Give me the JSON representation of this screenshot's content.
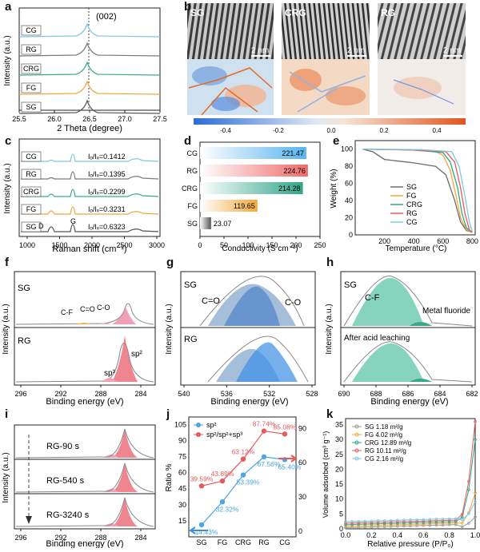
{
  "panels": {
    "a": {
      "label": "a",
      "ylabel": "Intensity (a.u.)",
      "xlabel": "2 Theta (degree)",
      "peak_label": "(002)",
      "xticks": [
        "25.5",
        "26.0",
        "26.5",
        "27.0",
        "27.5"
      ],
      "series": [
        "CG",
        "RG",
        "CRG",
        "FG",
        "SG"
      ],
      "colors": [
        "#7ec8e3",
        "#7a7a7a",
        "#3aaa8f",
        "#f0a640",
        "#555555"
      ]
    },
    "b": {
      "label": "b",
      "images": [
        "SG",
        "CRG",
        "RG"
      ],
      "scalebar": "2 nm",
      "colorbar_ticks": [
        "-0.4",
        "-0.2",
        "0.0",
        "0.2",
        "0.4"
      ]
    },
    "c": {
      "label": "c",
      "ylabel": "Intensity (a.u.)",
      "xlabel": "Raman shift (cm⁻¹)",
      "xticks": [
        "1000",
        "1500",
        "2000",
        "2500",
        "3000"
      ],
      "rows": [
        {
          "name": "CG",
          "ratio": "Iₒ/Iₓ=0.1412"
        },
        {
          "name": "RG",
          "ratio": "Iₒ/Iₓ=0.1395"
        },
        {
          "name": "CRG",
          "ratio": "Iₒ/Iₓ=0.2299"
        },
        {
          "name": "FG",
          "ratio": "Iₒ/Iₓ=0.3231"
        },
        {
          "name": "SG",
          "ratio": "Iₒ/Iₓ=0.6323"
        }
      ],
      "d_label": "D",
      "g_label": "G"
    },
    "d": {
      "label": "d",
      "xlabel": "Conductivity (S cm⁻¹)",
      "xticks": [
        "0",
        "50",
        "100",
        "150",
        "200",
        "250"
      ]
    },
    "e": {
      "label": "e",
      "ylabel": "Weight (%)",
      "xlabel": "Temperature (°C)",
      "xticks": [
        "200",
        "400",
        "600",
        "800"
      ],
      "yticks": [
        "0",
        "20",
        "40",
        "60",
        "80",
        "100"
      ],
      "legend": [
        "SG",
        "FG",
        "CRG",
        "RG",
        "CG"
      ]
    },
    "f": {
      "label": "f",
      "top": "SG",
      "bottom": "RG",
      "peaks_top": [
        "C-F",
        "C=O",
        "C-O"
      ],
      "sp2": "sp²",
      "sp3": "sp³",
      "ylabel": "Intensity (a.u.)",
      "xlabel": "Binding energy (eV)",
      "xticks": [
        "296",
        "292",
        "288",
        "284"
      ]
    },
    "g": {
      "label": "g",
      "top": "SG",
      "bottom": "RG",
      "c_o_double": "C=O",
      "c_o": "C-O",
      "ylabel": "Intensity (a.u.)",
      "xlabel": "Binding energy (eV)",
      "xticks": [
        "540",
        "536",
        "532",
        "528"
      ]
    },
    "h": {
      "label": "h",
      "top": "SG",
      "cf": "C-F",
      "metal": "Metal fluoride",
      "bottom": "After acid leaching",
      "ylabel": "Intensity (a.u.)",
      "xlabel": "Binding energy (eV)",
      "xticks": [
        "690",
        "688",
        "686",
        "684",
        "682"
      ]
    },
    "i": {
      "label": "i",
      "rows": [
        "RG-90 s",
        "RG-540 s",
        "RG-3240 s"
      ],
      "ylabel": "Intensity (a.u.)",
      "xlabel": "Binding energy (eV)",
      "xticks": [
        "296",
        "292",
        "288",
        "284"
      ]
    },
    "j": {
      "label": "j",
      "ylabel": "Ratio %",
      "legend1": "sp²",
      "legend2": "sp²/sp²+sp³",
      "yticks_left": [
        "15",
        "30",
        "45",
        "60",
        "75",
        "90",
        "105"
      ],
      "yticks_right": [
        "0",
        "30",
        "60",
        "90"
      ]
    },
    "k": {
      "label": "k",
      "ylabel": "Volume adsorbed (cm³ g⁻¹)",
      "xlabel": "Relative pressure (P/P₀)",
      "xticks": [
        "0.0",
        "0.2",
        "0.4",
        "0.6",
        "0.8",
        "1.0"
      ],
      "yticks": [
        "0",
        "5",
        "10",
        "15",
        "20",
        "25",
        "30",
        "35"
      ],
      "legend": [
        "SG 1.18 m²/g",
        "FG 4.02 m²/g",
        "CRG 12.89 m²/g",
        "RG 10.11 m²/g",
        "CG 2.16 m²/g"
      ]
    }
  },
  "chart_data": [
    {
      "type": "bar",
      "panel": "d",
      "categories": [
        "CG",
        "RG",
        "CRG",
        "FG",
        "SG"
      ],
      "values": [
        221.47,
        224.76,
        214.28,
        119.65,
        23.07
      ],
      "xlabel": "Conductivity (S cm⁻¹)",
      "xlim": [
        0,
        250
      ]
    },
    {
      "type": "line",
      "panel": "j",
      "categories": [
        "SG",
        "FG",
        "CRG",
        "RG",
        "CG"
      ],
      "series": [
        {
          "name": "sp²",
          "values": [
            14.43,
            32.32,
            53.39,
            67.56,
            65.4
          ],
          "labels": [
            "14.43%",
            "32.32%",
            "53.39%",
            "67.56%",
            "65.40%"
          ]
        },
        {
          "name": "sp²/sp²+sp³",
          "values": [
            39.59,
            43.89,
            63.12,
            87.74,
            85.08
          ],
          "labels": [
            "39.59%",
            "43.89%",
            "63.12%",
            "87.74%",
            "85.08%"
          ]
        }
      ]
    },
    {
      "type": "line",
      "panel": "e",
      "series": [
        {
          "name": "SG",
          "x": [
            50,
            120,
            200,
            400,
            550,
            620,
            680,
            720,
            760,
            800
          ],
          "y": [
            100,
            97,
            88,
            84,
            80,
            70,
            40,
            15,
            5,
            3
          ]
        },
        {
          "name": "FG",
          "x": [
            50,
            400,
            550,
            600,
            650,
            690,
            720,
            760,
            800
          ],
          "y": [
            100,
            99,
            97,
            93,
            75,
            45,
            20,
            6,
            3
          ]
        },
        {
          "name": "CRG",
          "x": [
            50,
            400,
            600,
            650,
            700,
            730,
            760,
            800
          ],
          "y": [
            100,
            99,
            96,
            85,
            55,
            25,
            8,
            3
          ]
        },
        {
          "name": "RG",
          "x": [
            50,
            400,
            620,
            680,
            720,
            750,
            780,
            800
          ],
          "y": [
            100,
            99,
            97,
            85,
            55,
            25,
            6,
            3
          ]
        },
        {
          "name": "CG",
          "x": [
            50,
            450,
            660,
            710,
            750,
            780,
            800
          ],
          "y": [
            100,
            99.5,
            97,
            80,
            45,
            15,
            4
          ]
        }
      ]
    }
  ]
}
